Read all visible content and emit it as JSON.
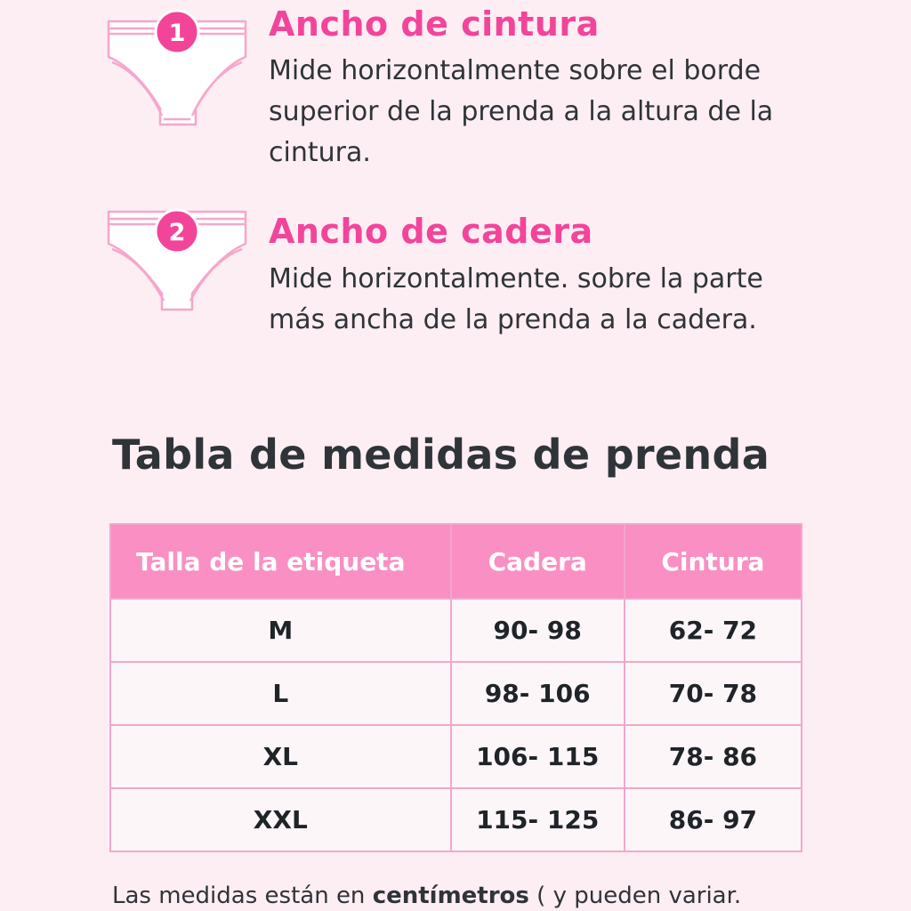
{
  "instructions": [
    {
      "number": "1",
      "title": "Ancho de cintura",
      "description": "Mide horizontalmente sobre el borde superior de la prenda a la altura de la cintura.",
      "icon": "panties-icon"
    },
    {
      "number": "2",
      "title": "Ancho de cadera",
      "description": "Mide horizontalmente. sobre la parte más ancha de la prenda a la cadera.",
      "icon": "panties-icon"
    }
  ],
  "section_title": "Tabla de medidas de prenda",
  "table": {
    "headers": [
      "Talla de la etiqueta",
      "Cadera",
      "Cintura"
    ],
    "rows": [
      [
        "M",
        "90- 98",
        "62- 72"
      ],
      [
        "L",
        "98- 106",
        "70- 78"
      ],
      [
        "XL",
        "106- 115",
        "78- 86"
      ],
      [
        "XXL",
        "115- 125",
        "86- 97"
      ]
    ]
  },
  "footnote": {
    "prefix": "Las medidas están en ",
    "emphasis": "centímetros",
    "suffix": " ( y pueden variar."
  },
  "colors": {
    "background": "#fdeef3",
    "accent": "#f2459a",
    "table_header": "#f98fc3",
    "table_border": "#f3a7cb",
    "text": "#2f3438"
  }
}
